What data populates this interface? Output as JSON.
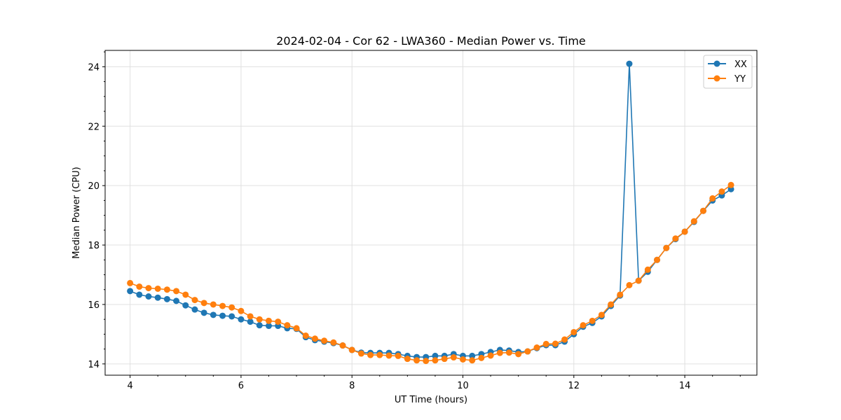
{
  "chart_data": {
    "type": "line",
    "title": "2024-02-04 - Cor 62 - LWA360 - Median Power vs. Time",
    "xlabel": "UT Time (hours)",
    "ylabel": "Median Power (CPU)",
    "xlim": [
      3.55,
      15.3
    ],
    "ylim": [
      13.62,
      24.55
    ],
    "xticks": [
      4,
      6,
      8,
      10,
      12,
      14
    ],
    "yticks": [
      14,
      16,
      18,
      20,
      22,
      24
    ],
    "grid": true,
    "legend_position": "top-right",
    "x": [
      4.0,
      4.167,
      4.333,
      4.5,
      4.667,
      4.833,
      5.0,
      5.167,
      5.333,
      5.5,
      5.667,
      5.833,
      6.0,
      6.167,
      6.333,
      6.5,
      6.667,
      6.833,
      7.0,
      7.167,
      7.333,
      7.5,
      7.667,
      7.833,
      8.0,
      8.167,
      8.333,
      8.5,
      8.667,
      8.833,
      9.0,
      9.167,
      9.333,
      9.5,
      9.667,
      9.833,
      10.0,
      10.167,
      10.333,
      10.5,
      10.667,
      10.833,
      11.0,
      11.167,
      11.333,
      11.5,
      11.667,
      11.833,
      12.0,
      12.167,
      12.333,
      12.5,
      12.667,
      12.833,
      13.0,
      13.167,
      13.333,
      13.5,
      13.667,
      13.833,
      14.0,
      14.167,
      14.333,
      14.5,
      14.667,
      14.833
    ],
    "series": [
      {
        "name": "XX",
        "color": "#1f77b4",
        "values": [
          16.45,
          16.33,
          16.27,
          16.23,
          16.18,
          16.12,
          15.97,
          15.83,
          15.72,
          15.65,
          15.62,
          15.6,
          15.5,
          15.42,
          15.3,
          15.28,
          15.28,
          15.2,
          15.18,
          14.9,
          14.8,
          14.75,
          14.7,
          14.62,
          14.47,
          14.38,
          14.37,
          14.37,
          14.37,
          14.33,
          14.27,
          14.23,
          14.23,
          14.27,
          14.27,
          14.33,
          14.27,
          14.27,
          14.33,
          14.4,
          14.47,
          14.45,
          14.4,
          14.42,
          14.53,
          14.63,
          14.63,
          14.75,
          15.0,
          15.25,
          15.38,
          15.6,
          15.95,
          16.3,
          24.1,
          16.8,
          17.1,
          17.5,
          17.9,
          18.2,
          18.45,
          18.78,
          19.15,
          19.5,
          19.67,
          19.88
        ]
      },
      {
        "name": "YY",
        "color": "#ff7f0e",
        "values": [
          16.72,
          16.6,
          16.55,
          16.53,
          16.5,
          16.45,
          16.33,
          16.15,
          16.05,
          16.0,
          15.95,
          15.9,
          15.78,
          15.6,
          15.5,
          15.45,
          15.42,
          15.3,
          15.2,
          14.95,
          14.85,
          14.78,
          14.72,
          14.62,
          14.47,
          14.35,
          14.3,
          14.3,
          14.28,
          14.27,
          14.17,
          14.12,
          14.1,
          14.12,
          14.17,
          14.22,
          14.15,
          14.12,
          14.2,
          14.28,
          14.37,
          14.38,
          14.33,
          14.42,
          14.55,
          14.67,
          14.68,
          14.82,
          15.07,
          15.3,
          15.45,
          15.65,
          16.0,
          16.33,
          16.65,
          16.8,
          17.17,
          17.5,
          17.9,
          18.22,
          18.45,
          18.8,
          19.15,
          19.57,
          19.8,
          20.02
        ]
      }
    ]
  }
}
